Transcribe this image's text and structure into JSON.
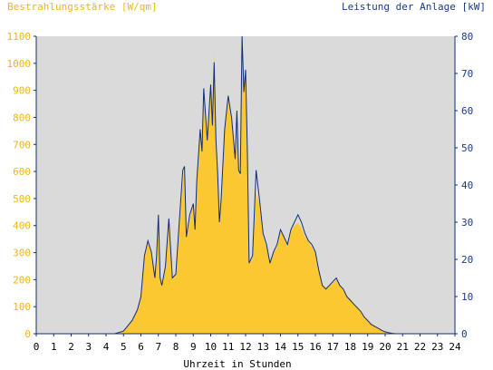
{
  "chart_data": {
    "type": "area",
    "left_axis_title": "Bestrahlungsstärke [W/qm]",
    "right_axis_title": "Leistung der Anlage [kW]",
    "xlabel": "Uhrzeit in Stunden",
    "x_ticks": [
      "0",
      "1",
      "2",
      "3",
      "4",
      "5",
      "6",
      "7",
      "8",
      "9",
      "10",
      "11",
      "12",
      "13",
      "14",
      "15",
      "16",
      "17",
      "18",
      "19",
      "20",
      "21",
      "22",
      "23",
      "24"
    ],
    "y_left_ticks": [
      "0",
      "100",
      "200",
      "300",
      "400",
      "500",
      "600",
      "700",
      "800",
      "900",
      "1000",
      "1100"
    ],
    "y_right_ticks": [
      "0",
      "10",
      "20",
      "30",
      "40",
      "50",
      "60",
      "70",
      "80"
    ],
    "xlim": [
      0,
      24
    ],
    "ylim_left": [
      0,
      1100
    ],
    "ylim_right": [
      0,
      80
    ],
    "grid": false,
    "colors": {
      "plot_background": "#dadada",
      "irradiance_fill": "#fcc832",
      "power_line": "#102d7a",
      "left_axis_text": "#f0b41e",
      "right_axis_text": "#1a3a8a",
      "x_axis_text": "#000000"
    },
    "series": [
      {
        "axis": "left",
        "style": "area",
        "x": [
          0,
          4.5,
          5,
          5.5,
          5.8,
          6,
          6.2,
          6.4,
          6.6,
          6.8,
          6.9,
          7,
          7.1,
          7.2,
          7.4,
          7.6,
          7.8,
          8,
          8.2,
          8.4,
          8.5,
          8.6,
          8.8,
          9,
          9.1,
          9.2,
          9.4,
          9.5,
          9.6,
          9.8,
          10,
          10.1,
          10.2,
          10.3,
          10.4,
          10.5,
          10.6,
          10.8,
          11,
          11.2,
          11.4,
          11.5,
          11.6,
          11.7,
          11.8,
          11.9,
          12,
          12.1,
          12.2,
          12.4,
          12.6,
          12.8,
          13,
          13.2,
          13.4,
          13.6,
          13.8,
          14,
          14.2,
          14.4,
          14.6,
          14.8,
          15,
          15.2,
          15.4,
          15.6,
          15.8,
          16,
          16.2,
          16.4,
          16.6,
          16.8,
          17,
          17.2,
          17.4,
          17.6,
          17.8,
          18,
          18.2,
          18.4,
          18.6,
          18.8,
          19,
          19.2,
          19.4,
          19.6,
          19.8,
          20,
          20.2,
          20.4,
          20.6,
          21,
          24
        ],
        "values": [
          0,
          0,
          10,
          50,
          90,
          140,
          280,
          340,
          300,
          200,
          280,
          360,
          200,
          180,
          240,
          400,
          200,
          220,
          390,
          560,
          600,
          350,
          420,
          480,
          380,
          560,
          760,
          680,
          900,
          720,
          940,
          780,
          1040,
          700,
          580,
          400,
          480,
          760,
          880,
          780,
          640,
          820,
          600,
          580,
          1100,
          900,
          980,
          700,
          260,
          280,
          520,
          480,
          360,
          320,
          260,
          300,
          320,
          380,
          360,
          320,
          380,
          400,
          410,
          390,
          360,
          340,
          320,
          300,
          240,
          180,
          170,
          180,
          185,
          200,
          180,
          160,
          140,
          130,
          110,
          100,
          80,
          60,
          50,
          40,
          30,
          20,
          12,
          8,
          4,
          2,
          0,
          0,
          0
        ]
      },
      {
        "axis": "right",
        "style": "line",
        "x": [
          0,
          4.5,
          5,
          5.5,
          5.8,
          6,
          6.2,
          6.4,
          6.6,
          6.8,
          6.9,
          7,
          7.1,
          7.2,
          7.4,
          7.6,
          7.8,
          8,
          8.2,
          8.4,
          8.5,
          8.6,
          8.8,
          9,
          9.1,
          9.2,
          9.4,
          9.5,
          9.6,
          9.8,
          10,
          10.1,
          10.2,
          10.3,
          10.4,
          10.5,
          10.6,
          10.8,
          11,
          11.2,
          11.4,
          11.5,
          11.6,
          11.7,
          11.8,
          11.9,
          12,
          12.1,
          12.2,
          12.4,
          12.6,
          12.8,
          13,
          13.2,
          13.4,
          13.6,
          13.8,
          14,
          14.2,
          14.4,
          14.6,
          14.8,
          15,
          15.2,
          15.4,
          15.6,
          15.8,
          16,
          16.2,
          16.4,
          16.6,
          16.8,
          17,
          17.2,
          17.4,
          17.6,
          17.8,
          18,
          18.2,
          18.4,
          18.6,
          18.8,
          19,
          19.2,
          19.4,
          19.6,
          19.8,
          20,
          20.2,
          20.4,
          20.6,
          21,
          24
        ],
        "values": [
          0,
          0,
          0.7,
          3.6,
          6.5,
          10,
          21,
          25,
          22,
          15,
          21,
          32,
          15,
          13,
          18,
          31,
          15,
          16,
          30,
          44,
          45,
          26,
          32,
          35,
          28,
          41,
          55,
          49,
          66,
          52,
          67,
          56,
          73,
          52,
          43,
          30,
          36,
          55,
          64,
          58,
          47,
          60,
          44,
          43,
          80,
          65,
          71,
          50,
          19,
          21,
          44,
          36,
          27,
          24,
          19,
          22,
          24,
          28,
          26,
          24,
          28,
          30,
          32,
          30,
          27,
          25,
          24,
          22,
          17,
          13,
          12,
          13,
          14,
          15,
          13,
          12,
          10,
          9,
          8,
          7,
          6,
          4.5,
          3.5,
          2.5,
          2,
          1.5,
          0.9,
          0.5,
          0.3,
          0.1,
          0,
          0,
          0
        ]
      }
    ]
  }
}
